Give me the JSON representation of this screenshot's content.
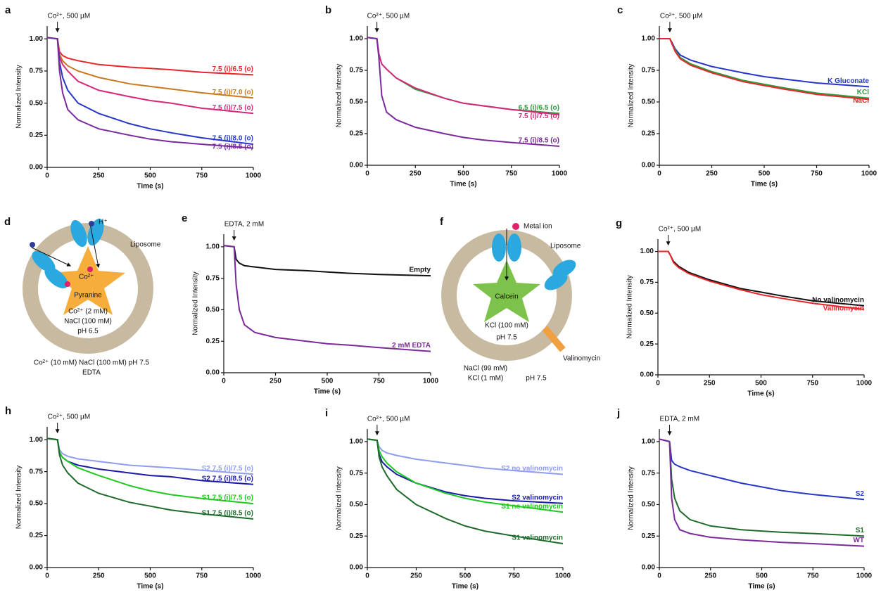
{
  "chart_data": [
    {
      "type": "line",
      "panel": "a",
      "annotation": {
        "text": "Co²⁺, 500 µM",
        "x": 50
      },
      "xlabel": "Time (s)",
      "ylabel": "Normalized Intensity",
      "x": [
        0,
        50,
        60,
        75,
        100,
        150,
        250,
        400,
        500,
        600,
        750,
        1000
      ],
      "xlim": [
        0,
        1000
      ],
      "ylim": [
        0,
        1.1
      ],
      "xticks": [
        0,
        250,
        500,
        750,
        1000
      ],
      "yticks": [
        {
          "value": 0,
          "label": "0.00"
        },
        {
          "value": 0.25,
          "label": "0.25"
        },
        {
          "value": 0.5,
          "label": "0.50"
        },
        {
          "value": 0.75,
          "label": "0.75"
        },
        {
          "value": 1,
          "label": "1.00"
        }
      ],
      "series": [
        {
          "name": "7.5 (i)/6.5 (o)",
          "color": "#e8262a",
          "values": [
            1.01,
            1.0,
            0.9,
            0.87,
            0.85,
            0.83,
            0.8,
            0.78,
            0.77,
            0.76,
            0.74,
            0.72
          ]
        },
        {
          "name": "7.5 (i)/7.0 (o)",
          "color": "#c8781e",
          "values": [
            1.01,
            1.0,
            0.88,
            0.83,
            0.79,
            0.75,
            0.7,
            0.65,
            0.63,
            0.61,
            0.58,
            0.54
          ]
        },
        {
          "name": "7.5 (i)/7.5 (o)",
          "color": "#d6287a",
          "values": [
            1.01,
            1.0,
            0.86,
            0.8,
            0.75,
            0.67,
            0.6,
            0.55,
            0.52,
            0.5,
            0.46,
            0.42
          ]
        },
        {
          "name": "7.5 (i)/8.0 (o)",
          "color": "#2636c8",
          "values": [
            1.01,
            1.0,
            0.82,
            0.7,
            0.6,
            0.5,
            0.42,
            0.34,
            0.3,
            0.27,
            0.23,
            0.18
          ]
        },
        {
          "name": "7.5 (i)/8.5 (o)",
          "color": "#7b2a9c",
          "values": [
            1.01,
            1.0,
            0.75,
            0.58,
            0.45,
            0.37,
            0.3,
            0.25,
            0.22,
            0.2,
            0.18,
            0.15
          ]
        }
      ]
    },
    {
      "type": "line",
      "panel": "b",
      "annotation": {
        "text": "Co²⁺, 500 µM",
        "x": 50
      },
      "xlabel": "Time (s)",
      "ylabel": "Normalized Intensity",
      "x": [
        0,
        50,
        60,
        75,
        100,
        150,
        250,
        400,
        500,
        600,
        750,
        1000
      ],
      "xlim": [
        0,
        1000
      ],
      "ylim": [
        0,
        1.1
      ],
      "xticks": [
        0,
        250,
        500,
        750,
        1000
      ],
      "yticks": [
        {
          "value": 0,
          "label": "0.00"
        },
        {
          "value": 0.25,
          "label": "0.25"
        },
        {
          "value": 0.5,
          "label": "0.50"
        },
        {
          "value": 0.75,
          "label": "0.75"
        },
        {
          "value": 1,
          "label": "1.00"
        }
      ],
      "series": [
        {
          "name": "6.5 (i)/6.5 (o)",
          "color": "#2e9a3c",
          "values": [
            1.01,
            1.0,
            0.88,
            0.8,
            0.76,
            0.69,
            0.6,
            0.53,
            0.49,
            0.47,
            0.44,
            0.41
          ]
        },
        {
          "name": "7.5 (i)/7.5 (o)",
          "color": "#d6287a",
          "values": [
            1.01,
            1.0,
            0.88,
            0.8,
            0.76,
            0.69,
            0.61,
            0.53,
            0.49,
            0.47,
            0.44,
            0.4
          ]
        },
        {
          "name": "7.5 (i)/8.5 (o)",
          "color": "#7b2a9c",
          "values": [
            1.01,
            1.0,
            0.85,
            0.55,
            0.42,
            0.36,
            0.3,
            0.25,
            0.22,
            0.2,
            0.18,
            0.15
          ]
        }
      ]
    },
    {
      "type": "line",
      "panel": "c",
      "annotation": {
        "text": "Co²⁺, 500 µM",
        "x": 50
      },
      "xlabel": "Time (s)",
      "ylabel": "Normalized Intensity",
      "x": [
        0,
        50,
        60,
        75,
        100,
        150,
        250,
        400,
        500,
        600,
        750,
        1000
      ],
      "xlim": [
        0,
        1000
      ],
      "ylim": [
        0,
        1.1
      ],
      "xticks": [
        0,
        250,
        500,
        750,
        1000
      ],
      "yticks": [
        {
          "value": 0,
          "label": "0.00"
        },
        {
          "value": 0.25,
          "label": "0.25"
        },
        {
          "value": 0.5,
          "label": "0.50"
        },
        {
          "value": 0.75,
          "label": "0.75"
        },
        {
          "value": 1,
          "label": "1.00"
        }
      ],
      "series": [
        {
          "name": "K Gluconate",
          "color": "#2636c8",
          "values": [
            1.0,
            1.0,
            0.97,
            0.92,
            0.87,
            0.83,
            0.78,
            0.73,
            0.7,
            0.68,
            0.65,
            0.62
          ]
        },
        {
          "name": "KCl",
          "color": "#2e9a3c",
          "values": [
            1.0,
            1.0,
            0.96,
            0.91,
            0.85,
            0.8,
            0.74,
            0.67,
            0.64,
            0.61,
            0.57,
            0.53
          ]
        },
        {
          "name": "NaCl",
          "color": "#e8262a",
          "values": [
            1.0,
            1.0,
            0.96,
            0.9,
            0.84,
            0.79,
            0.73,
            0.66,
            0.63,
            0.6,
            0.56,
            0.52
          ]
        }
      ]
    },
    {
      "type": "line",
      "panel": "e",
      "annotation": {
        "text": "EDTA, 2 mM",
        "x": 50
      },
      "xlabel": "Time (s)",
      "ylabel": "Normalized Intensity",
      "x": [
        0,
        50,
        60,
        75,
        100,
        150,
        250,
        400,
        500,
        600,
        750,
        1000
      ],
      "xlim": [
        0,
        1000
      ],
      "ylim": [
        0,
        1.1
      ],
      "xticks": [
        0,
        250,
        500,
        750,
        1000
      ],
      "yticks": [
        {
          "value": 0,
          "label": "0.00"
        },
        {
          "value": 0.25,
          "label": "0.25"
        },
        {
          "value": 0.5,
          "label": "0.50"
        },
        {
          "value": 0.75,
          "label": "0.75"
        },
        {
          "value": 1,
          "label": "1.00"
        }
      ],
      "series": [
        {
          "name": "Empty",
          "color": "#111111",
          "values": [
            1.01,
            1.0,
            0.9,
            0.87,
            0.85,
            0.84,
            0.82,
            0.81,
            0.8,
            0.79,
            0.78,
            0.77
          ]
        },
        {
          "name": "2 mM EDTA",
          "color": "#7b2a9c",
          "values": [
            1.01,
            1.0,
            0.7,
            0.5,
            0.38,
            0.32,
            0.28,
            0.25,
            0.23,
            0.22,
            0.2,
            0.17
          ]
        }
      ]
    },
    {
      "type": "line",
      "panel": "g",
      "annotation": {
        "text": "Co²⁺, 500 µM",
        "x": 50
      },
      "xlabel": "Time (s)",
      "ylabel": "Normalized Intensity",
      "x": [
        0,
        50,
        60,
        75,
        100,
        150,
        250,
        400,
        500,
        600,
        750,
        1000
      ],
      "xlim": [
        0,
        1000
      ],
      "ylim": [
        0,
        1.1
      ],
      "xticks": [
        0,
        250,
        500,
        750,
        1000
      ],
      "yticks": [
        {
          "value": 0,
          "label": "0.00"
        },
        {
          "value": 0.25,
          "label": "0.25"
        },
        {
          "value": 0.5,
          "label": "0.50"
        },
        {
          "value": 0.75,
          "label": "0.75"
        },
        {
          "value": 1,
          "label": "1.00"
        }
      ],
      "series": [
        {
          "name": "No valinomycin",
          "color": "#111111",
          "values": [
            1.0,
            1.0,
            0.97,
            0.92,
            0.88,
            0.83,
            0.77,
            0.7,
            0.67,
            0.64,
            0.6,
            0.56
          ]
        },
        {
          "name": "Valinomycin",
          "color": "#e8262a",
          "values": [
            1.0,
            1.0,
            0.97,
            0.91,
            0.87,
            0.82,
            0.76,
            0.69,
            0.65,
            0.62,
            0.58,
            0.53
          ]
        }
      ]
    },
    {
      "type": "line",
      "panel": "h",
      "annotation": {
        "text": "Co²⁺, 500 µM",
        "x": 50
      },
      "xlabel": "Time (s)",
      "ylabel": "Normalized Intensity",
      "x": [
        0,
        50,
        60,
        75,
        100,
        150,
        250,
        400,
        500,
        600,
        750,
        1000
      ],
      "xlim": [
        0,
        1000
      ],
      "ylim": [
        0,
        1.1
      ],
      "xticks": [
        0,
        250,
        500,
        750,
        1000
      ],
      "yticks": [
        {
          "value": 0,
          "label": "0.00"
        },
        {
          "value": 0.25,
          "label": "0.25"
        },
        {
          "value": 0.5,
          "label": "0.50"
        },
        {
          "value": 0.75,
          "label": "0.75"
        },
        {
          "value": 1,
          "label": "1.00"
        }
      ],
      "series": [
        {
          "name": "S2 7.5 (i)/7.5 (o)",
          "color": "#8f9cf0",
          "values": [
            1.01,
            1.0,
            0.92,
            0.89,
            0.87,
            0.85,
            0.83,
            0.8,
            0.79,
            0.78,
            0.76,
            0.73
          ]
        },
        {
          "name": "S2 7.5 (i)/8.5 (o)",
          "color": "#1a1aa8",
          "values": [
            1.01,
            1.0,
            0.9,
            0.86,
            0.83,
            0.8,
            0.77,
            0.74,
            0.72,
            0.71,
            0.68,
            0.65
          ]
        },
        {
          "name": "S1 7.5 (i)/7.5 (o)",
          "color": "#1ec81e",
          "values": [
            1.01,
            1.0,
            0.9,
            0.86,
            0.83,
            0.78,
            0.72,
            0.64,
            0.6,
            0.57,
            0.54,
            0.5
          ]
        },
        {
          "name": "S1 7.5 (i)/8.5 (o)",
          "color": "#1e6a2a",
          "values": [
            1.01,
            1.0,
            0.88,
            0.8,
            0.74,
            0.66,
            0.58,
            0.51,
            0.48,
            0.45,
            0.42,
            0.38
          ]
        }
      ]
    },
    {
      "type": "line",
      "panel": "i",
      "annotation": {
        "text": "Co²⁺, 500 µM",
        "x": 50
      },
      "xlabel": "Time (s)",
      "ylabel": "Normalized Intensity",
      "x": [
        0,
        50,
        60,
        75,
        100,
        150,
        250,
        400,
        500,
        600,
        750,
        1000
      ],
      "xlim": [
        0,
        1000
      ],
      "ylim": [
        0,
        1.1
      ],
      "xticks": [
        0,
        250,
        500,
        750,
        1000
      ],
      "yticks": [
        {
          "value": 0,
          "label": "0.00"
        },
        {
          "value": 0.25,
          "label": "0.25"
        },
        {
          "value": 0.5,
          "label": "0.50"
        },
        {
          "value": 0.75,
          "label": "0.75"
        },
        {
          "value": 1,
          "label": "1.00"
        }
      ],
      "series": [
        {
          "name": "S2 no valinomycin",
          "color": "#8f9cf0",
          "values": [
            1.02,
            1.01,
            0.96,
            0.93,
            0.91,
            0.89,
            0.86,
            0.83,
            0.81,
            0.79,
            0.77,
            0.74
          ]
        },
        {
          "name": "S2 valinomycin",
          "color": "#1a1aa8",
          "values": [
            1.02,
            1.01,
            0.9,
            0.84,
            0.8,
            0.74,
            0.67,
            0.6,
            0.57,
            0.55,
            0.53,
            0.51
          ]
        },
        {
          "name": "S1 no valinomycin",
          "color": "#1ec81e",
          "values": [
            1.02,
            1.01,
            0.93,
            0.88,
            0.83,
            0.76,
            0.67,
            0.59,
            0.55,
            0.52,
            0.49,
            0.44
          ]
        },
        {
          "name": "S1 valinomycin",
          "color": "#1e6a2a",
          "values": [
            1.02,
            1.01,
            0.88,
            0.8,
            0.73,
            0.62,
            0.5,
            0.39,
            0.33,
            0.29,
            0.25,
            0.19
          ]
        }
      ]
    },
    {
      "type": "line",
      "panel": "j",
      "annotation": {
        "text": "EDTA, 2 mM",
        "x": 50
      },
      "xlabel": "Time (s)",
      "ylabel": "Normalized Intensity",
      "x": [
        0,
        50,
        60,
        75,
        100,
        150,
        250,
        400,
        500,
        600,
        750,
        1000
      ],
      "xlim": [
        0,
        1000
      ],
      "ylim": [
        0,
        1.1
      ],
      "xticks": [
        0,
        250,
        500,
        750,
        1000
      ],
      "yticks": [
        {
          "value": 0,
          "label": "0.00"
        },
        {
          "value": 0.25,
          "label": "0.25"
        },
        {
          "value": 0.5,
          "label": "0.50"
        },
        {
          "value": 0.75,
          "label": "0.75"
        },
        {
          "value": 1,
          "label": "1.00"
        }
      ],
      "series": [
        {
          "name": "S2",
          "color": "#2636c8",
          "values": [
            1.02,
            1.0,
            0.85,
            0.82,
            0.8,
            0.77,
            0.73,
            0.67,
            0.64,
            0.61,
            0.58,
            0.54
          ]
        },
        {
          "name": "S1",
          "color": "#1e6a2a",
          "values": [
            1.02,
            1.0,
            0.7,
            0.55,
            0.45,
            0.38,
            0.33,
            0.3,
            0.29,
            0.28,
            0.27,
            0.25
          ]
        },
        {
          "name": "WT",
          "color": "#7b2a9c",
          "values": [
            1.02,
            1.0,
            0.55,
            0.38,
            0.3,
            0.27,
            0.24,
            0.22,
            0.21,
            0.2,
            0.19,
            0.17
          ]
        }
      ]
    }
  ],
  "diagrams": [
    {
      "panel": "d",
      "labels": [
        "H⁺",
        "Co²⁺",
        "Liposome",
        "Pyranine",
        "Co²⁺ (2 mM)",
        "NaCl (100 mM)",
        "pH 6.5",
        "Co²⁺ (10 mM) NaCl (100 mM) pH 7.5",
        "EDTA"
      ]
    },
    {
      "panel": "f",
      "labels": [
        "Metal ion",
        "Liposome",
        "Calcein",
        "KCl (100 mM)",
        "pH 7.5",
        "Valinomycin",
        "NaCl (99 mM)",
        "KCl (1 mM)",
        "pH 7.5"
      ]
    }
  ]
}
